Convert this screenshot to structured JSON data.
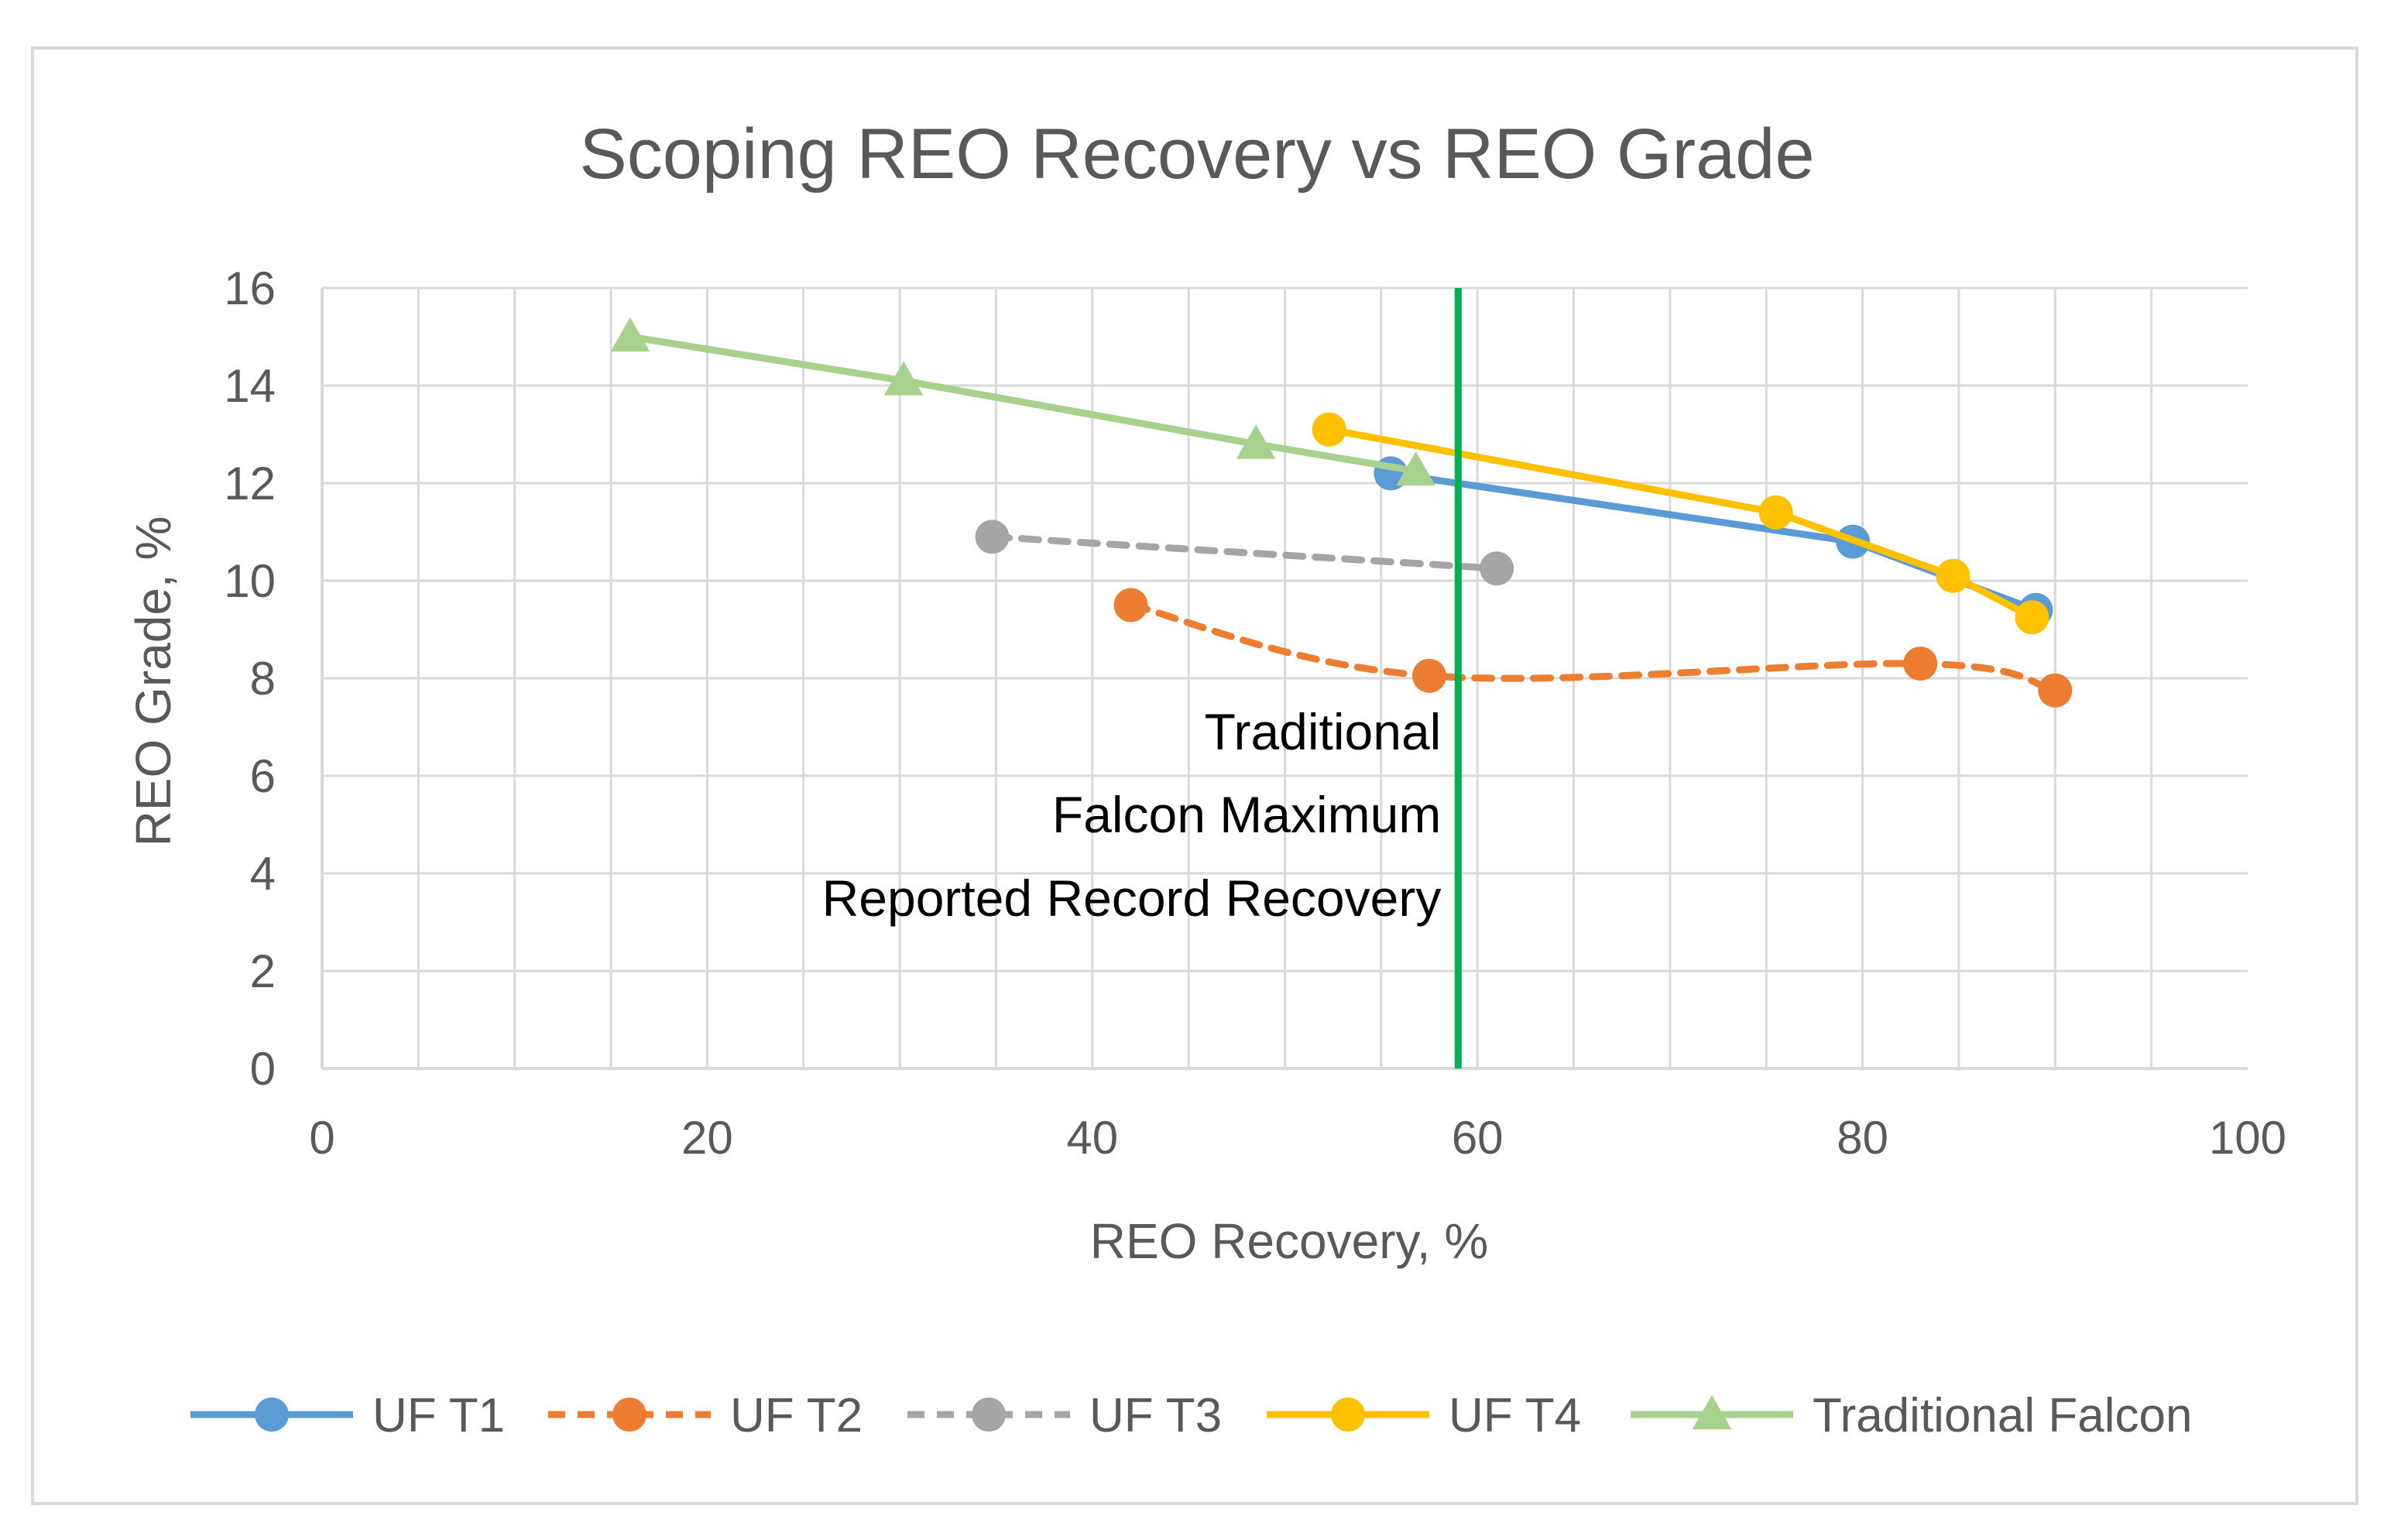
{
  "chart_data": {
    "type": "scatter",
    "title": "Scoping REO Recovery vs REO Grade",
    "xlabel": "REO Recovery, %",
    "ylabel": "REO Grade, %",
    "xlim": [
      0,
      100
    ],
    "ylim": [
      0,
      16
    ],
    "x_ticks": [
      0,
      20,
      40,
      60,
      80,
      100
    ],
    "y_ticks": [
      0,
      2,
      4,
      6,
      8,
      10,
      12,
      14,
      16
    ],
    "grid": true,
    "legend_position": "bottom",
    "series": [
      {
        "name": "UF T1",
        "color": "#5B9BD5",
        "line_style": "solid",
        "marker": "circle",
        "smooth": false,
        "points": [
          [
            55.5,
            12.2
          ],
          [
            79.5,
            10.8
          ],
          [
            89,
            9.4
          ]
        ]
      },
      {
        "name": "UF T2",
        "color": "#ED7D31",
        "line_style": "dashed",
        "marker": "circle",
        "smooth": true,
        "points": [
          [
            42,
            9.5
          ],
          [
            57.5,
            8.05
          ],
          [
            83,
            8.3
          ],
          [
            90,
            7.75
          ]
        ]
      },
      {
        "name": "UF T3",
        "color": "#A5A5A5",
        "line_style": "dashed",
        "marker": "circle",
        "smooth": false,
        "points": [
          [
            34.8,
            10.9
          ],
          [
            61,
            10.25
          ]
        ]
      },
      {
        "name": "UF T4",
        "color": "#FFC000",
        "line_style": "solid",
        "marker": "circle",
        "smooth": false,
        "points": [
          [
            52.3,
            13.1
          ],
          [
            75.5,
            11.4
          ],
          [
            84.7,
            10.1
          ],
          [
            88.8,
            9.25
          ]
        ]
      },
      {
        "name": "Traditional Falcon",
        "color": "#A9D18E",
        "line_style": "solid",
        "marker": "triangle",
        "smooth": false,
        "points": [
          [
            16,
            15
          ],
          [
            30.2,
            14.1
          ],
          [
            48.5,
            12.8
          ],
          [
            56.8,
            12.25
          ]
        ]
      }
    ],
    "reference_line": {
      "x": 59,
      "color": "#00B050",
      "label_lines": [
        "Traditional",
        "Falcon Maximum",
        "Reported Record Recovery"
      ]
    }
  }
}
